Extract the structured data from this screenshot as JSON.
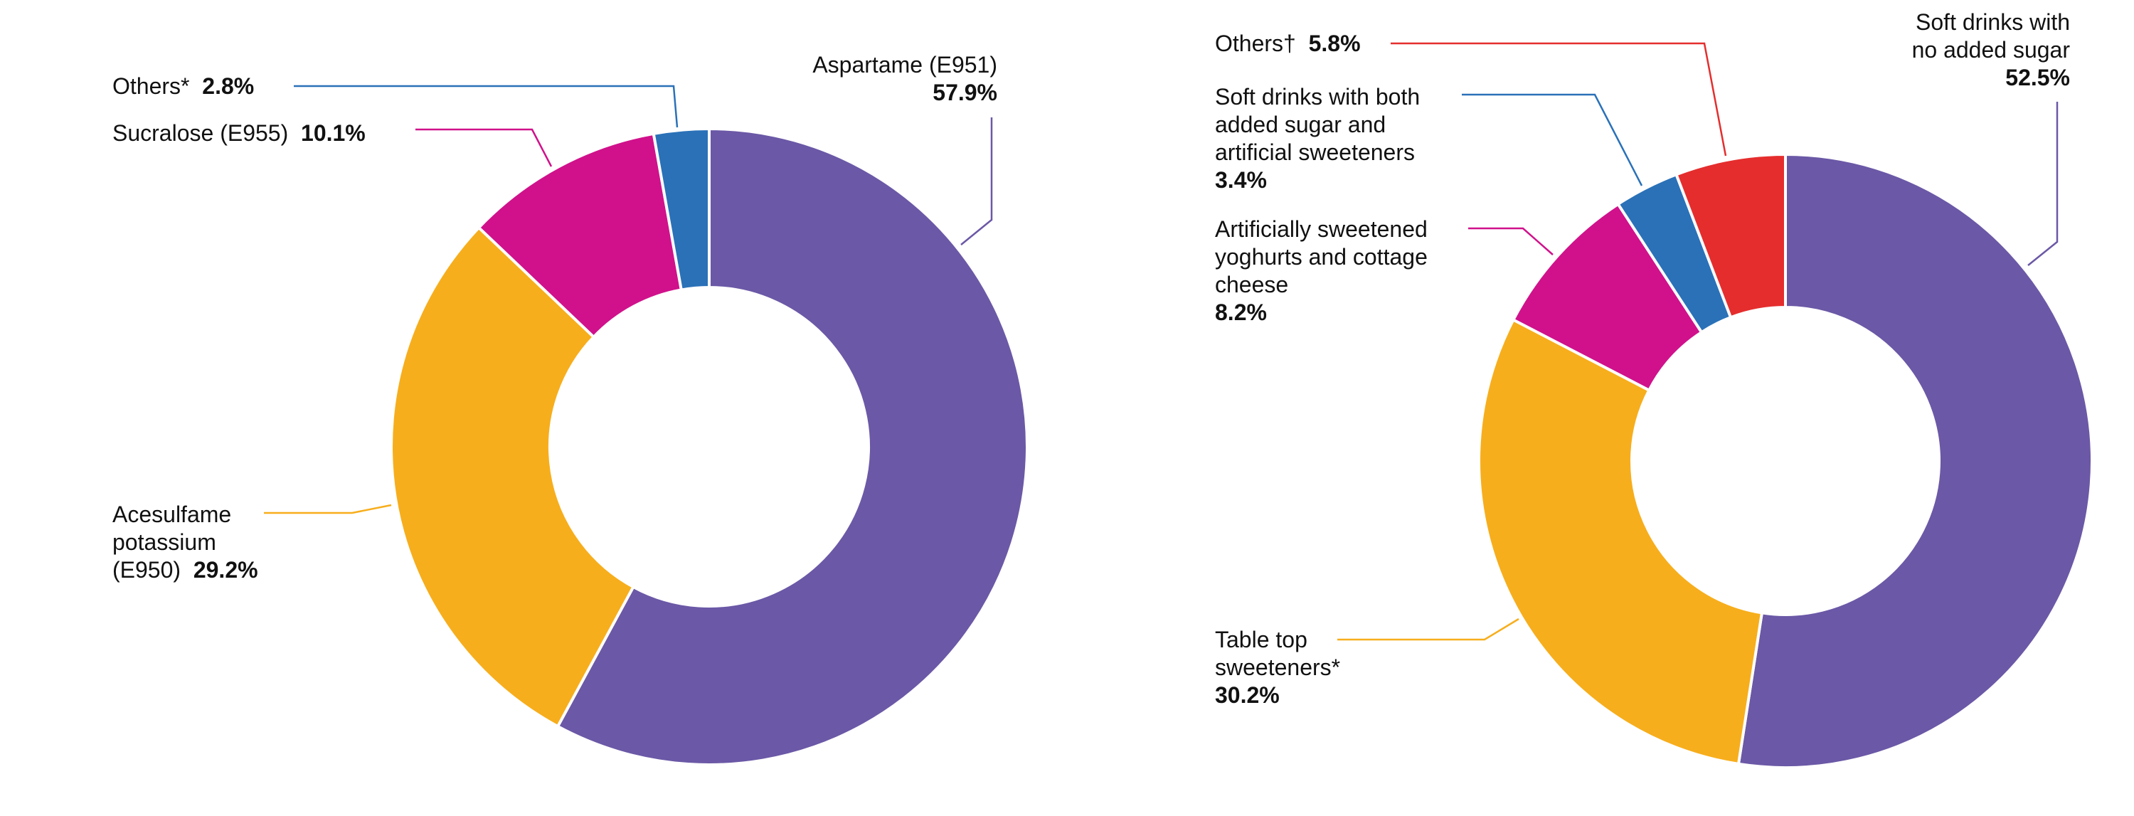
{
  "chart_data": [
    {
      "type": "pie",
      "donut": true,
      "title": "",
      "slices": [
        {
          "label": "Aspartame (E951)",
          "value": 57.9,
          "value_label": "57.9%",
          "color": "#6b58a6"
        },
        {
          "label": "Acesulfame potassium (E950)",
          "lines": [
            "Acesulfame",
            "potassium",
            "(E950)"
          ],
          "value": 29.2,
          "value_label": "29.2%",
          "color": "#f7ae1c"
        },
        {
          "label": "Sucralose (E955)",
          "value": 10.1,
          "value_label": "10.1%",
          "color": "#d0118b"
        },
        {
          "label": "Others*",
          "value": 2.8,
          "value_label": "2.8%",
          "color": "#2a71b8"
        }
      ]
    },
    {
      "type": "pie",
      "donut": true,
      "title": "",
      "slices": [
        {
          "label": "Soft drinks with no added sugar",
          "lines": [
            "Soft drinks with",
            "no added sugar"
          ],
          "value": 52.5,
          "value_label": "52.5%",
          "color": "#6b58a6"
        },
        {
          "label": "Table top sweeteners*",
          "lines": [
            "Table top",
            "sweeteners*"
          ],
          "value": 30.2,
          "value_label": "30.2%",
          "color": "#f7ae1c"
        },
        {
          "label": "Artificially sweetened yoghurts and cottage cheese",
          "lines": [
            "Artificially sweetened",
            "yoghurts and cottage",
            "cheese"
          ],
          "value": 8.2,
          "value_label": "8.2%",
          "color": "#d0118b"
        },
        {
          "label": "Soft drinks with both added sugar and artificial sweeteners",
          "lines": [
            "Soft drinks with both",
            "added sugar and",
            "artificial sweeteners"
          ],
          "value": 3.4,
          "value_label": "3.4%",
          "color": "#2a71b8"
        },
        {
          "label": "Others†",
          "value": 5.8,
          "value_label": "5.8%",
          "color": "#e52d2d"
        }
      ]
    }
  ]
}
